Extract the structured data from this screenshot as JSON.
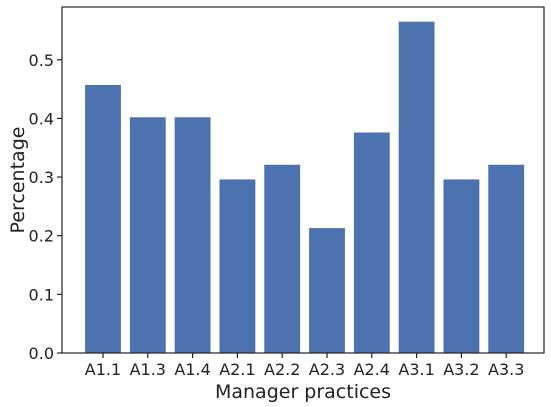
{
  "chart_data": {
    "type": "bar",
    "title": "",
    "xlabel": "Manager practices",
    "ylabel": "Percentage",
    "categories": [
      "A1.1",
      "A1.3",
      "A1.4",
      "A2.1",
      "A2.2",
      "A2.3",
      "A2.4",
      "A3.1",
      "A3.2",
      "A3.3"
    ],
    "values": [
      0.457,
      0.402,
      0.402,
      0.296,
      0.321,
      0.213,
      0.376,
      0.565,
      0.296,
      0.321
    ],
    "ylim": [
      0,
      0.59
    ],
    "yticks": [
      "0.0",
      "0.1",
      "0.2",
      "0.3",
      "0.4",
      "0.5"
    ],
    "grid": false,
    "bar_color": "#4c72b0"
  }
}
